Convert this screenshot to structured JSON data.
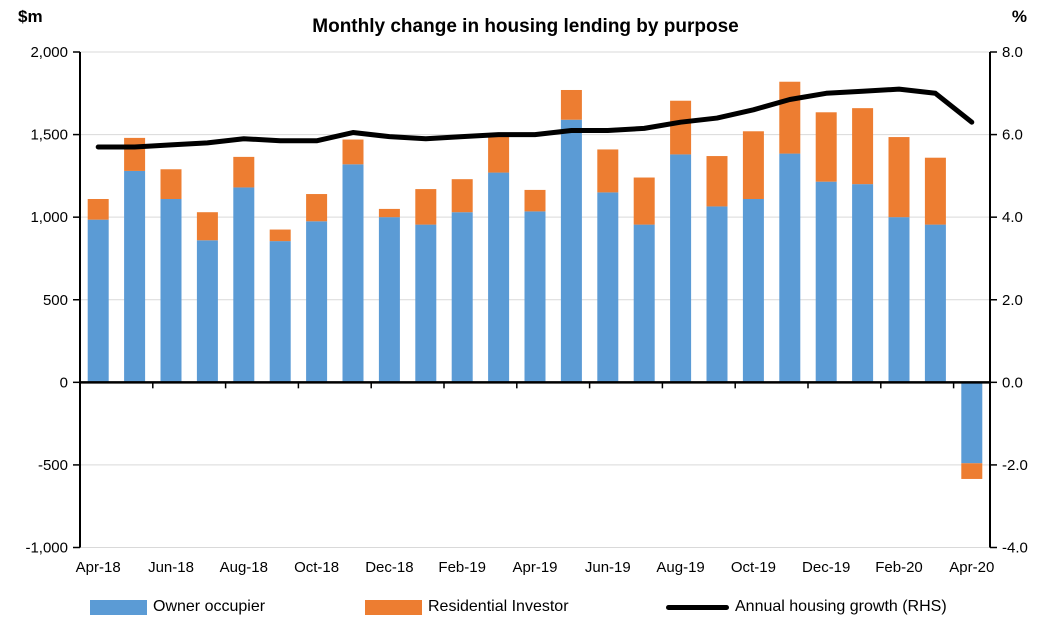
{
  "title": "Monthly change in housing lending by purpose",
  "legend": [
    {
      "label": "Owner occupier",
      "color": "#5B9BD5",
      "swatch": "rect"
    },
    {
      "label": "Residential Investor",
      "color": "#ED7D31",
      "swatch": "rect"
    },
    {
      "label": "Annual housing growth (RHS)",
      "color": "#000000",
      "swatch": "line"
    }
  ],
  "colors": {
    "owner_occupier": "#5B9BD5",
    "residential_investor": "#ED7D31",
    "growth_line": "#000000",
    "gridline": "#D9D9D9",
    "axis": "#000000"
  },
  "chart_data": {
    "type": "combo",
    "bar_mode": "stacked",
    "title": "Monthly change in housing lending by purpose",
    "categories": [
      "Apr-18",
      "May-18",
      "Jun-18",
      "Jul-18",
      "Aug-18",
      "Sep-18",
      "Oct-18",
      "Nov-18",
      "Dec-18",
      "Jan-19",
      "Feb-19",
      "Mar-19",
      "Apr-19",
      "May-19",
      "Jun-19",
      "Jul-19",
      "Aug-19",
      "Sep-19",
      "Oct-19",
      "Nov-19",
      "Dec-19",
      "Jan-20",
      "Feb-20",
      "Mar-20",
      "Apr-20"
    ],
    "x_tick_labels": [
      "Apr-18",
      "Jun-18",
      "Aug-18",
      "Oct-18",
      "Dec-18",
      "Feb-19",
      "Apr-19",
      "Jun-19",
      "Aug-19",
      "Oct-19",
      "Dec-19",
      "Feb-20",
      "Apr-20"
    ],
    "series": [
      {
        "name": "Owner occupier",
        "type": "bar",
        "axis": "left",
        "color": "#5B9BD5",
        "values": [
          985,
          1280,
          1110,
          860,
          1180,
          855,
          975,
          1320,
          1000,
          955,
          1030,
          1270,
          1035,
          1590,
          1150,
          955,
          1380,
          1065,
          1110,
          1385,
          1215,
          1200,
          1000,
          955,
          -490
        ]
      },
      {
        "name": "Residential Investor",
        "type": "bar",
        "axis": "left",
        "color": "#ED7D31",
        "values": [
          125,
          200,
          180,
          170,
          185,
          70,
          165,
          150,
          50,
          215,
          200,
          220,
          130,
          180,
          260,
          285,
          325,
          305,
          410,
          435,
          420,
          460,
          485,
          405,
          -95
        ]
      },
      {
        "name": "Annual housing growth (RHS)",
        "type": "line",
        "axis": "right",
        "color": "#000000",
        "values": [
          5.7,
          5.7,
          5.75,
          5.8,
          5.9,
          5.85,
          5.85,
          6.05,
          5.95,
          5.9,
          5.95,
          6.0,
          6.0,
          6.1,
          6.1,
          6.15,
          6.3,
          6.4,
          6.6,
          6.85,
          7.0,
          7.05,
          7.1,
          7.0,
          6.3
        ]
      }
    ],
    "left_axis": {
      "label": "$m",
      "min": -1000,
      "max": 2000,
      "step": 500,
      "ticks": [
        "2,000",
        "1,500",
        "1,000",
        "500",
        "0",
        "-500",
        "-1,000"
      ]
    },
    "right_axis": {
      "label": "%",
      "min": -4,
      "max": 8,
      "step": 2,
      "ticks": [
        "8.0",
        "6.0",
        "4.0",
        "2.0",
        "0.0",
        "-2.0",
        "-4.0"
      ]
    },
    "grid": true,
    "legend_position": "bottom"
  }
}
